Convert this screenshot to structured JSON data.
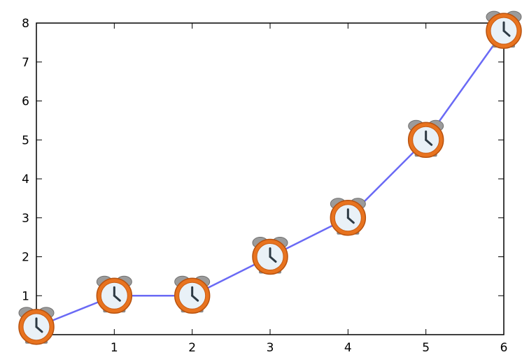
{
  "chart_data": {
    "type": "line",
    "x": [
      0,
      1,
      2,
      3,
      4,
      5,
      6
    ],
    "y": [
      0.2,
      1,
      1,
      2,
      3,
      5,
      7.8
    ],
    "xlim": [
      0,
      6
    ],
    "ylim": [
      0,
      8
    ],
    "xticks": [
      1,
      2,
      3,
      4,
      5,
      6
    ],
    "yticks": [
      1,
      2,
      3,
      4,
      5,
      6,
      7,
      8
    ],
    "title": "",
    "xlabel": "",
    "ylabel": "",
    "grid": false,
    "line_color": "#6a6af5",
    "marker_icon": "alarm-clock-icon",
    "marker_colors": {
      "ring": "#e8731f",
      "face": "#e9f1f7",
      "bell": "#9a9a9a"
    }
  }
}
